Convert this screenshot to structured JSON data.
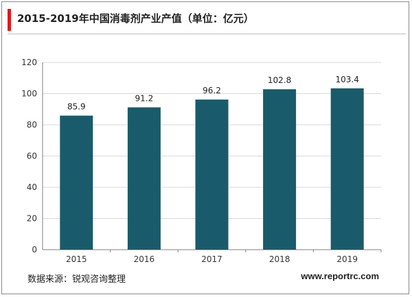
{
  "header": {
    "title": "2015-2019年中国消毒剂产业产值（单位：亿元）"
  },
  "footer": {
    "source": "数据来源：锐观咨询整理",
    "website": "www.reportrc.com"
  },
  "colors": {
    "bar": "#1a5b6b",
    "accent": "#e8141b",
    "grid": "#d9d9d9",
    "axis": "#7f7f7f"
  },
  "chart_data": {
    "type": "bar",
    "categories": [
      "2015",
      "2016",
      "2017",
      "2018",
      "2019"
    ],
    "values": [
      85.9,
      91.2,
      96.2,
      102.8,
      103.4
    ],
    "data_labels": [
      "85.9",
      "91.2",
      "96.2",
      "102.8",
      "103.4"
    ],
    "title": "2015-2019年中国消毒剂产业产值（单位：亿元）",
    "xlabel": "",
    "ylabel": "",
    "ylim": [
      0,
      120
    ],
    "yticks": [
      0,
      20,
      40,
      60,
      80,
      100,
      120
    ],
    "grid": true,
    "legend": "none"
  }
}
